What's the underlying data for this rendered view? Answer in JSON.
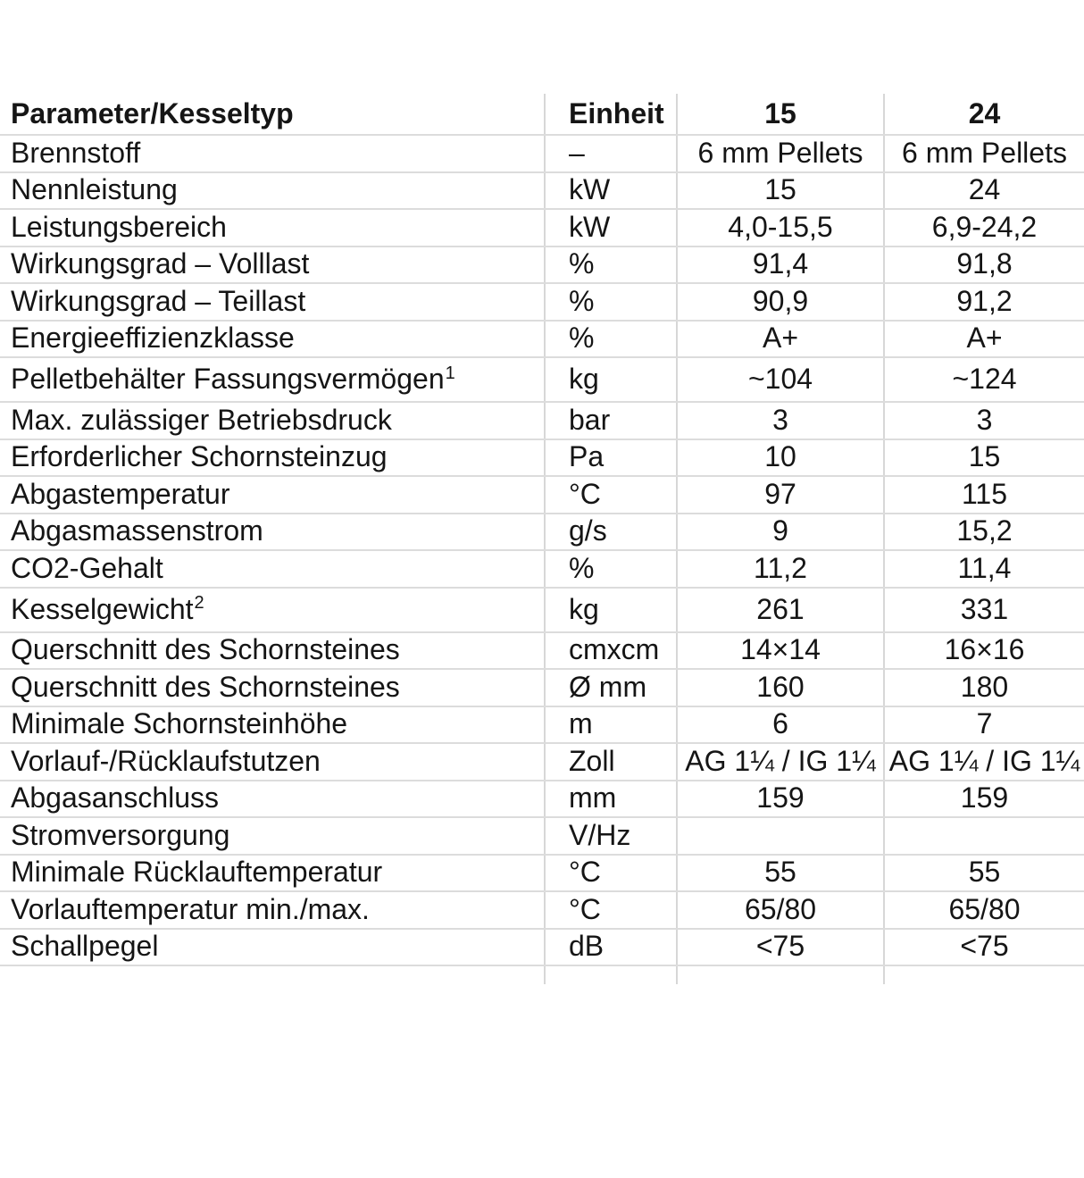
{
  "table": {
    "header": {
      "param": "Parameter/Kesseltyp",
      "unit": "Einheit",
      "col15": "15",
      "col24": "24"
    },
    "rows": [
      {
        "param": "Brennstoff",
        "sup": "",
        "unit": "–",
        "v15": "6 mm Pellets",
        "v24": "6 mm Pellets"
      },
      {
        "param": "Nennleistung",
        "sup": "",
        "unit": "kW",
        "v15": "15",
        "v24": "24"
      },
      {
        "param": "Leistungsbereich",
        "sup": "",
        "unit": "kW",
        "v15": "4,0-15,5",
        "v24": "6,9-24,2"
      },
      {
        "param": "Wirkungsgrad – Volllast",
        "sup": "",
        "unit": "%",
        "v15": "91,4",
        "v24": "91,8"
      },
      {
        "param": "Wirkungsgrad – Teillast",
        "sup": "",
        "unit": "%",
        "v15": "90,9",
        "v24": "91,2"
      },
      {
        "param": "Energieeffizienzklasse",
        "sup": "",
        "unit": "%",
        "v15": "A+",
        "v24": "A+"
      },
      {
        "param": "Pelletbehälter Fassungsvermögen",
        "sup": "1",
        "unit": "kg",
        "v15": "~104",
        "v24": "~124",
        "tall": true
      },
      {
        "param": "Max. zulässiger Betriebsdruck",
        "sup": "",
        "unit": "bar",
        "v15": "3",
        "v24": "3"
      },
      {
        "param": "Erforderlicher Schornsteinzug",
        "sup": "",
        "unit": "Pa",
        "v15": "10",
        "v24": "15"
      },
      {
        "param": "Abgastemperatur",
        "sup": "",
        "unit": "°C",
        "v15": "97",
        "v24": "115"
      },
      {
        "param": "Abgasmassenstrom",
        "sup": "",
        "unit": "g/s",
        "v15": "9",
        "v24": "15,2"
      },
      {
        "param": "CO2-Gehalt",
        "sup": "",
        "unit": "%",
        "v15": "11,2",
        "v24": "11,4"
      },
      {
        "param": "Kesselgewicht",
        "sup": "2",
        "unit": "kg",
        "v15": "261",
        "v24": "331",
        "tall": true
      },
      {
        "param": "Querschnitt des Schornsteines",
        "sup": "",
        "unit": "cmxcm",
        "v15": "14×14",
        "v24": "16×16"
      },
      {
        "param": "Querschnitt des Schornsteines",
        "sup": "",
        "unit": "Ø mm",
        "v15": "160",
        "v24": "180"
      },
      {
        "param": "Minimale Schornsteinhöhe",
        "sup": "",
        "unit": "m",
        "v15": "6",
        "v24": "7"
      },
      {
        "param": "Vorlauf-/Rücklaufstutzen",
        "sup": "",
        "unit": "Zoll",
        "v15": "AG 1¼ / IG 1¼",
        "v24": "AG 1¼ / IG 1¼"
      },
      {
        "param": "Abgasanschluss",
        "sup": "",
        "unit": "mm",
        "v15": "159",
        "v24": "159"
      },
      {
        "param": "Stromversorgung",
        "sup": "",
        "unit": "V/Hz",
        "v15": "",
        "v24": ""
      },
      {
        "param": "Minimale Rücklauftemperatur",
        "sup": "",
        "unit": "°C",
        "v15": "55",
        "v24": "55"
      },
      {
        "param": "Vorlauftemperatur min./max.",
        "sup": "",
        "unit": "°C",
        "v15": "65/80",
        "v24": "65/80"
      },
      {
        "param": "Schallpegel",
        "sup": "",
        "unit": "dB",
        "v15": "<75",
        "v24": "<75"
      }
    ]
  }
}
